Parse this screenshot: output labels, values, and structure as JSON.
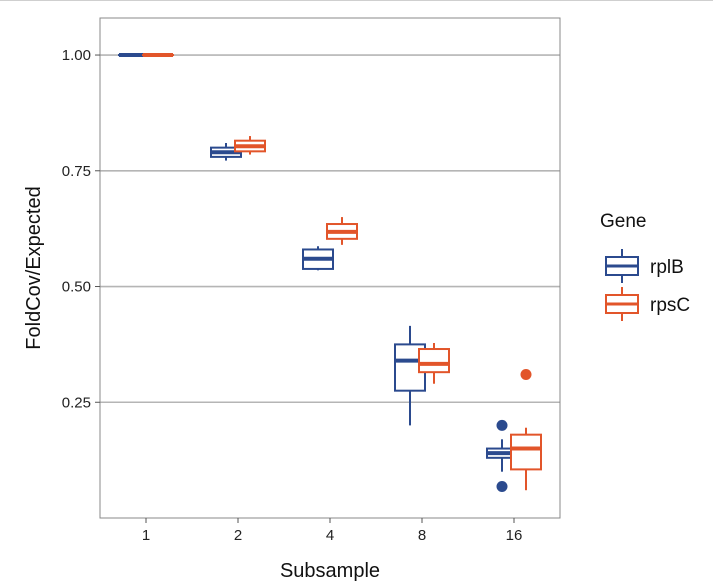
{
  "chart_data": {
    "type": "boxplot",
    "xlabel": "Subsample",
    "ylabel": "FoldCov/Expected",
    "categories": [
      "1",
      "2",
      "4",
      "8",
      "16"
    ],
    "ylim": [
      0.0,
      1.08
    ],
    "yticks": [
      0.25,
      0.5,
      0.75,
      1.0
    ],
    "ytick_labels": [
      "0.25",
      "0.50",
      "0.75",
      "1.00"
    ],
    "grid": true,
    "legend": {
      "title": "Gene",
      "placement": "right"
    },
    "series": [
      {
        "name": "rplB",
        "color": "#2b4a8e",
        "boxes": [
          {
            "min": 1.0,
            "q1": 1.0,
            "median": 1.0,
            "q3": 1.0,
            "max": 1.0,
            "outliers": []
          },
          {
            "min": 0.772,
            "q1": 0.78,
            "median": 0.79,
            "q3": 0.8,
            "max": 0.81,
            "outliers": []
          },
          {
            "min": 0.535,
            "q1": 0.538,
            "median": 0.56,
            "q3": 0.58,
            "max": 0.587,
            "outliers": []
          },
          {
            "min": 0.2,
            "q1": 0.275,
            "median": 0.34,
            "q3": 0.375,
            "max": 0.415,
            "outliers": []
          },
          {
            "min": 0.1,
            "q1": 0.13,
            "median": 0.14,
            "q3": 0.15,
            "max": 0.17,
            "outliers": [
              0.2,
              0.068
            ]
          }
        ]
      },
      {
        "name": "rpsC",
        "color": "#e2552a",
        "boxes": [
          {
            "min": 1.0,
            "q1": 1.0,
            "median": 1.0,
            "q3": 1.0,
            "max": 1.0,
            "outliers": []
          },
          {
            "min": 0.785,
            "q1": 0.792,
            "median": 0.803,
            "q3": 0.815,
            "max": 0.825,
            "outliers": []
          },
          {
            "min": 0.59,
            "q1": 0.603,
            "median": 0.618,
            "q3": 0.635,
            "max": 0.65,
            "outliers": []
          },
          {
            "min": 0.29,
            "q1": 0.315,
            "median": 0.333,
            "q3": 0.365,
            "max": 0.378,
            "outliers": []
          },
          {
            "min": 0.06,
            "q1": 0.105,
            "median": 0.15,
            "q3": 0.18,
            "max": 0.195,
            "outliers": [
              0.31
            ]
          }
        ]
      }
    ]
  }
}
